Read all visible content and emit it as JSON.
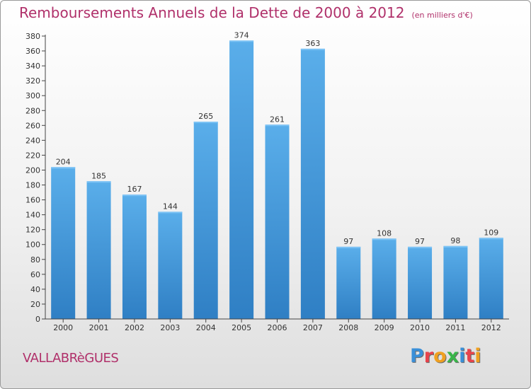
{
  "header": {
    "title": "Remboursements Annuels de la Dette de 2000 à 2012",
    "subtitle": "(en milliers d'€)"
  },
  "footer": {
    "commune": "VALLABRèGUES",
    "logo_letters": [
      "P",
      "r",
      "o",
      "x",
      "i",
      "t",
      "i"
    ],
    "logo_colors": [
      "#3a8fd8",
      "#e8434b",
      "#f0a020",
      "#3ab54a",
      "#3a8fd8",
      "#e8434b",
      "#f0a020"
    ]
  },
  "chart_data": {
    "type": "bar",
    "title": "Remboursements Annuels de la Dette de 2000 à 2012",
    "xlabel": "",
    "ylabel": "",
    "categories": [
      "2000",
      "2001",
      "2002",
      "2003",
      "2004",
      "2005",
      "2006",
      "2007",
      "2008",
      "2009",
      "2010",
      "2011",
      "2012"
    ],
    "values": [
      204,
      185,
      167,
      144,
      265,
      374,
      261,
      363,
      97,
      108,
      97,
      98,
      109
    ],
    "ylim": [
      0,
      380
    ],
    "ytick_step": 20,
    "grid": false,
    "legend": "none",
    "bar_color": "#4a9de0"
  }
}
